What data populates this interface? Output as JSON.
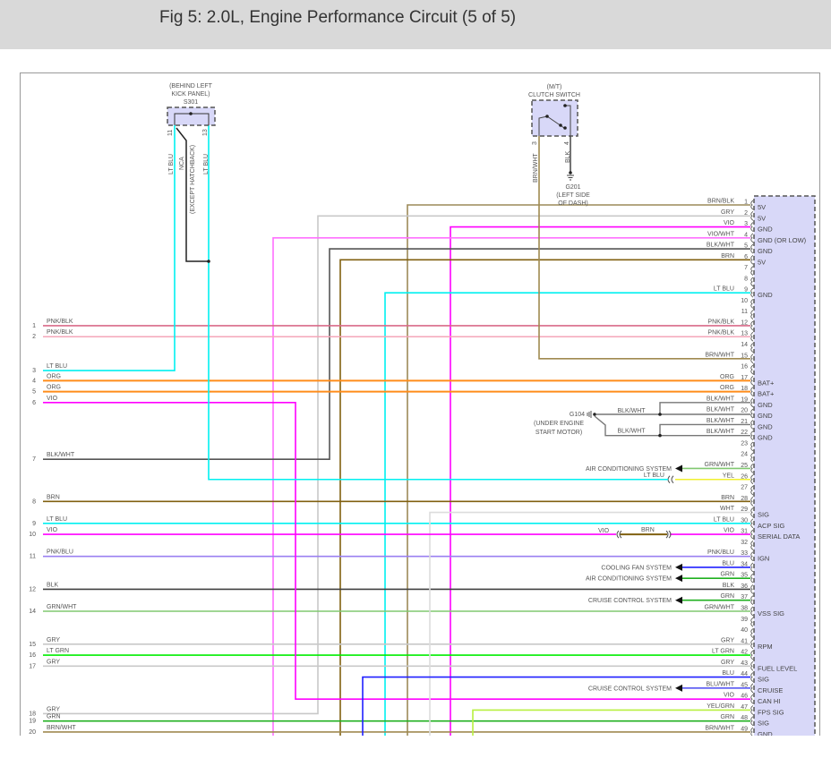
{
  "title": "Fig 5: 2.0L, Engine Performance Circuit (5 of 5)",
  "pcm": {
    "pins": [
      {
        "pin": "1",
        "wire": "BRN/BLK",
        "func": "5V",
        "color": "#9c8a58"
      },
      {
        "pin": "2",
        "wire": "GRY",
        "func": "5V",
        "color": "#c8c8c8"
      },
      {
        "pin": "3",
        "wire": "VIO",
        "func": "GND",
        "color": "#ff00ff"
      },
      {
        "pin": "4",
        "wire": "VIO/WHT",
        "func": "GND (OR LOW)",
        "color": "#ff70ff"
      },
      {
        "pin": "5",
        "wire": "BLK/WHT",
        "func": "GND",
        "color": "#555555"
      },
      {
        "pin": "6",
        "wire": "BRN",
        "func": "5V",
        "color": "#806010"
      },
      {
        "pin": "7",
        "wire": "",
        "func": ""
      },
      {
        "pin": "8",
        "wire": "",
        "func": ""
      },
      {
        "pin": "9",
        "wire": "LT BLU",
        "func": "GND",
        "color": "#00f0f0"
      },
      {
        "pin": "10",
        "wire": "",
        "func": ""
      },
      {
        "pin": "11",
        "wire": "",
        "func": ""
      },
      {
        "pin": "12",
        "wire": "PNK/BLK",
        "func": "",
        "color": "#d86a88"
      },
      {
        "pin": "13",
        "wire": "PNK/BLK",
        "func": "",
        "color": "#f4a6b8"
      },
      {
        "pin": "14",
        "wire": "",
        "func": ""
      },
      {
        "pin": "15",
        "wire": "BRN/WHT",
        "func": "",
        "color": "#a08a50"
      },
      {
        "pin": "16",
        "wire": "",
        "func": ""
      },
      {
        "pin": "17",
        "wire": "ORG",
        "func": "BAT+",
        "color": "#ff8c1a"
      },
      {
        "pin": "18",
        "wire": "ORG",
        "func": "BAT+",
        "color": "#ff8c1a"
      },
      {
        "pin": "19",
        "wire": "BLK/WHT",
        "func": "GND",
        "color": "#777777"
      },
      {
        "pin": "20",
        "wire": "BLK/WHT",
        "func": "GND",
        "color": "#777777"
      },
      {
        "pin": "21",
        "wire": "BLK/WHT",
        "func": "GND",
        "color": "#777777"
      },
      {
        "pin": "22",
        "wire": "BLK/WHT",
        "func": "GND",
        "color": "#777777"
      },
      {
        "pin": "23",
        "wire": "",
        "func": ""
      },
      {
        "pin": "24",
        "wire": "",
        "func": ""
      },
      {
        "pin": "25",
        "wire": "GRN/WHT",
        "func": "",
        "color": "#80c870"
      },
      {
        "pin": "26",
        "wire": "YEL",
        "func": "",
        "color": "#f0f030"
      },
      {
        "pin": "27",
        "wire": "",
        "func": ""
      },
      {
        "pin": "28",
        "wire": "BRN",
        "func": "",
        "color": "#806010"
      },
      {
        "pin": "29",
        "wire": "WHT",
        "func": "SIG",
        "color": "#dcdcdc"
      },
      {
        "pin": "30",
        "wire": "LT BLU",
        "func": "ACP SIG",
        "color": "#00f0f0"
      },
      {
        "pin": "31",
        "wire": "VIO",
        "func": "SERIAL DATA",
        "color": "#ff00ff"
      },
      {
        "pin": "32",
        "wire": "",
        "func": ""
      },
      {
        "pin": "33",
        "wire": "PNK/BLU",
        "func": "IGN",
        "color": "#9a80f0"
      },
      {
        "pin": "34",
        "wire": "BLU",
        "func": "",
        "color": "#2020ff"
      },
      {
        "pin": "35",
        "wire": "GRN",
        "func": "",
        "color": "#20b020"
      },
      {
        "pin": "36",
        "wire": "BLK",
        "func": "",
        "color": "#404040"
      },
      {
        "pin": "37",
        "wire": "GRN",
        "func": "",
        "color": "#20b020"
      },
      {
        "pin": "38",
        "wire": "GRN/WHT",
        "func": "VSS SIG",
        "color": "#80c870"
      },
      {
        "pin": "39",
        "wire": "",
        "func": ""
      },
      {
        "pin": "40",
        "wire": "",
        "func": ""
      },
      {
        "pin": "41",
        "wire": "GRY",
        "func": "RPM",
        "color": "#c8c8c8"
      },
      {
        "pin": "42",
        "wire": "LT GRN",
        "func": "",
        "color": "#00ee00"
      },
      {
        "pin": "43",
        "wire": "GRY",
        "func": "FUEL LEVEL",
        "color": "#c8c8c8"
      },
      {
        "pin": "44",
        "wire": "BLU",
        "func": "SIG",
        "color": "#2020ff"
      },
      {
        "pin": "45",
        "wire": "BLU/WHT",
        "func": "CRUISE",
        "color": "#4848f0"
      },
      {
        "pin": "46",
        "wire": "VIO",
        "func": "CAN HI",
        "color": "#ff00ff"
      },
      {
        "pin": "47",
        "wire": "YEL/GRN",
        "func": "FPS SIG",
        "color": "#b8f040"
      },
      {
        "pin": "48",
        "wire": "GRN",
        "func": "SIG",
        "color": "#20b020"
      },
      {
        "pin": "49",
        "wire": "BRN/WHT",
        "func": "GND",
        "color": "#a08a50"
      }
    ]
  },
  "left_connector": {
    "rows": [
      {
        "num": "1",
        "wire": "PNK/BLK"
      },
      {
        "num": "2",
        "wire": "PNK/BLK"
      },
      {
        "num": "3",
        "wire": "LT BLU"
      },
      {
        "num": "4",
        "wire": "ORG"
      },
      {
        "num": "5",
        "wire": "ORG"
      },
      {
        "num": "6",
        "wire": "VIO"
      },
      {
        "num": "7",
        "wire": "BLK/WHT"
      },
      {
        "num": "8",
        "wire": "BRN"
      },
      {
        "num": "9",
        "wire": "LT BLU"
      },
      {
        "num": "10",
        "wire": "VIO"
      },
      {
        "num": "11",
        "wire": "PNK/BLU"
      },
      {
        "num": "12",
        "wire": "BLK"
      },
      {
        "num": "14",
        "wire": "GRN/WHT"
      },
      {
        "num": "15",
        "wire": "GRY"
      },
      {
        "num": "16",
        "wire": "LT GRN"
      },
      {
        "num": "17",
        "wire": "GRY"
      },
      {
        "num": "18",
        "wire": "GRY"
      },
      {
        "num": "19",
        "wire": "GRN"
      },
      {
        "num": "20",
        "wire": "BRN/WHT"
      }
    ]
  },
  "s301": {
    "location": [
      "(BEHIND LEFT",
      "KICK PANEL)"
    ],
    "name": "S301",
    "pins": [
      "11",
      "13"
    ],
    "wire_labels": [
      "LT BLU",
      "NCA",
      "(EXCEPT HATCHBACK)",
      "LT BLU"
    ]
  },
  "clutch_switch": {
    "lines": [
      "(M/T)",
      "CLUTCH SWITCH"
    ],
    "pins": [
      "3",
      "4"
    ],
    "wire_labels": [
      "BRN/WHT",
      "BLK"
    ]
  },
  "g201": [
    "G201",
    "(LEFT SIDE",
    "OF DASH)"
  ],
  "g104": {
    "lines": [
      "G104",
      "(UNDER ENGINE",
      "START MOTOR)"
    ],
    "wire": "BLK/WHT"
  },
  "destinations": [
    {
      "pin": "25",
      "label": "AIR CONDITIONING SYSTEM"
    },
    {
      "pin": "34",
      "label": "COOLING FAN SYSTEM"
    },
    {
      "pin": "35",
      "label": "AIR CONDITIONING SYSTEM"
    },
    {
      "pin": "37",
      "label": "CRUISE CONTROL SYSTEM"
    },
    {
      "pin": "45",
      "label": "CRUISE CONTROL SYSTEM"
    }
  ],
  "inline_connectors": {
    "pin26_left_wire": "LT BLU",
    "pin31_left_wire": "VIO",
    "pin31_mid_wire": "BRN"
  },
  "colors": {
    "module_fill": "#d8d8f8",
    "title_bar": "#d9d9d9",
    "lt_blu": "#00f0f0",
    "black": "#222222"
  }
}
